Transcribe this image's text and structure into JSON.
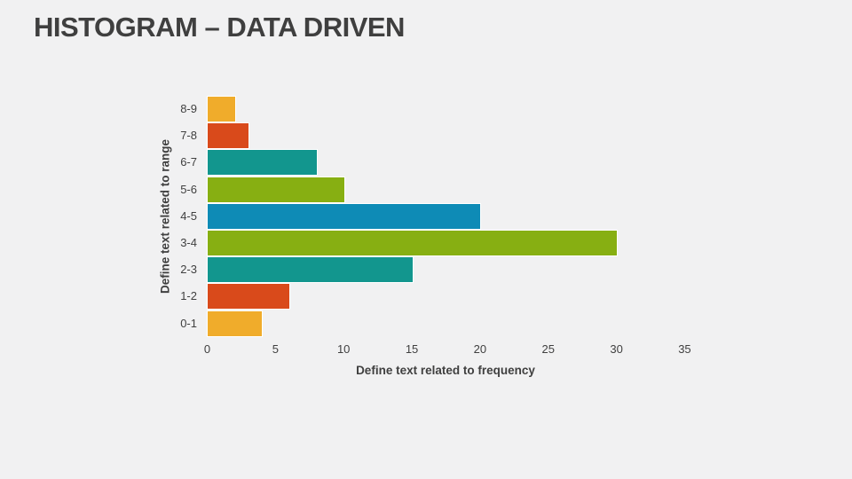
{
  "slide": {
    "title": "HISTOGRAM – DATA DRIVEN",
    "background_color": "#F1F1F2",
    "title_color": "#3F3F3F"
  },
  "chart_data": {
    "type": "bar",
    "orientation": "horizontal",
    "title": "",
    "xlabel": "Define text related to frequency",
    "ylabel": "Define text related to range",
    "categories_top_to_bottom": [
      "8-9",
      "7-8",
      "6-7",
      "5-6",
      "4-5",
      "3-4",
      "2-3",
      "1-2",
      "0-1"
    ],
    "values": [
      2,
      3,
      8,
      10,
      20,
      30,
      15,
      6,
      4
    ],
    "bar_colors": [
      "#F0AC2B",
      "#D94A1B",
      "#12968E",
      "#87AF12",
      "#0E8BB6",
      "#87AF12",
      "#12968E",
      "#D94A1B",
      "#F0AC2B"
    ],
    "xlim": [
      0,
      35
    ],
    "x_ticks": [
      0,
      5,
      10,
      15,
      20,
      25,
      30,
      35
    ],
    "grid": false,
    "legend": false,
    "axis_text_color": "#404040",
    "bar_outline_color": "#FFFFFF"
  }
}
